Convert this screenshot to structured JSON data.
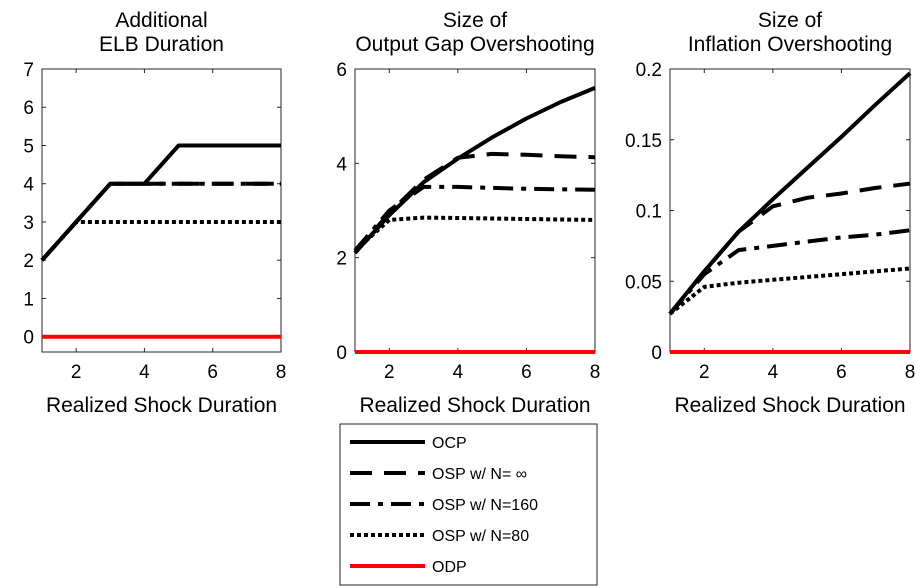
{
  "chart_data": [
    {
      "type": "line",
      "title": [
        "Additional",
        "ELB Duration"
      ],
      "xlabel": "Realized Shock Duration",
      "ylabel": "",
      "xlim": [
        1,
        8
      ],
      "ylim": [
        -0.4,
        7
      ],
      "xticks": [
        2,
        4,
        6,
        8
      ],
      "yticks": [
        0,
        1,
        2,
        3,
        4,
        5,
        6,
        7
      ],
      "x": [
        1,
        2,
        3,
        4,
        5,
        6,
        7,
        8
      ],
      "series": [
        {
          "name": "OCP",
          "style": "solid",
          "color": "#000000",
          "values": [
            2,
            3,
            4,
            4,
            5,
            5,
            5,
            5
          ]
        },
        {
          "name": "OSP w/ N= ∞",
          "style": "dashed",
          "color": "#000000",
          "values": [
            2,
            3,
            4,
            4,
            4,
            4,
            4,
            4
          ]
        },
        {
          "name": "OSP w/ N=160",
          "style": "dashdot",
          "color": "#000000",
          "values": [
            2,
            3,
            4,
            4,
            4,
            4,
            4,
            4
          ]
        },
        {
          "name": "OSP w/ N=80",
          "style": "dotted",
          "color": "#000000",
          "values": [
            2,
            3,
            3,
            3,
            3,
            3,
            3,
            3
          ]
        },
        {
          "name": "ODP",
          "style": "solid",
          "color": "#ff0000",
          "values": [
            0,
            0,
            0,
            0,
            0,
            0,
            0,
            0
          ]
        }
      ]
    },
    {
      "type": "line",
      "title": [
        "Size of",
        "Output Gap Overshooting"
      ],
      "xlabel": "Realized Shock Duration",
      "ylabel": "",
      "xlim": [
        1,
        8
      ],
      "ylim": [
        0,
        6
      ],
      "xticks": [
        2,
        4,
        6,
        8
      ],
      "yticks": [
        0,
        2,
        4,
        6
      ],
      "x": [
        1,
        2,
        3,
        4,
        5,
        6,
        7,
        8
      ],
      "series": [
        {
          "name": "OCP",
          "style": "solid",
          "color": "#000000",
          "values": [
            2.1,
            2.9,
            3.6,
            4.1,
            4.55,
            4.95,
            5.3,
            5.6
          ]
        },
        {
          "name": "OSP w/ N= ∞",
          "style": "dashed",
          "color": "#000000",
          "values": [
            2.1,
            2.95,
            3.65,
            4.12,
            4.2,
            4.18,
            4.15,
            4.13
          ]
        },
        {
          "name": "OSP w/ N=160",
          "style": "dashdot",
          "color": "#000000",
          "values": [
            2.15,
            3.0,
            3.5,
            3.5,
            3.48,
            3.46,
            3.45,
            3.44
          ]
        },
        {
          "name": "OSP w/ N=80",
          "style": "dotted",
          "color": "#000000",
          "values": [
            2.15,
            2.8,
            2.85,
            2.84,
            2.83,
            2.82,
            2.81,
            2.8
          ]
        },
        {
          "name": "ODP",
          "style": "solid",
          "color": "#ff0000",
          "values": [
            0,
            0,
            0,
            0,
            0,
            0,
            0,
            0
          ]
        }
      ]
    },
    {
      "type": "line",
      "title": [
        "Size of",
        "Inflation Overshooting"
      ],
      "xlabel": "Realized Shock Duration",
      "ylabel": "",
      "xlim": [
        1,
        8
      ],
      "ylim": [
        0,
        0.2
      ],
      "xticks": [
        2,
        4,
        6,
        8
      ],
      "yticks": [
        0,
        0.05,
        0.1,
        0.15,
        0.2
      ],
      "ytick_labels": [
        "0",
        "0.05",
        "0.1",
        "0.15",
        "0.2"
      ],
      "x": [
        1,
        2,
        3,
        4,
        5,
        6,
        7,
        8
      ],
      "series": [
        {
          "name": "OCP",
          "style": "solid",
          "color": "#000000",
          "values": [
            0.027,
            0.057,
            0.085,
            0.108,
            0.13,
            0.152,
            0.175,
            0.197
          ]
        },
        {
          "name": "OSP w/ N= ∞",
          "style": "dashed",
          "color": "#000000",
          "values": [
            0.027,
            0.057,
            0.085,
            0.103,
            0.109,
            0.112,
            0.116,
            0.119
          ]
        },
        {
          "name": "OSP w/ N=160",
          "style": "dashdot",
          "color": "#000000",
          "values": [
            0.027,
            0.055,
            0.072,
            0.075,
            0.078,
            0.081,
            0.083,
            0.086
          ]
        },
        {
          "name": "OSP w/ N=80",
          "style": "dotted",
          "color": "#000000",
          "values": [
            0.027,
            0.046,
            0.049,
            0.051,
            0.053,
            0.055,
            0.057,
            0.059
          ]
        },
        {
          "name": "ODP",
          "style": "solid",
          "color": "#ff0000",
          "values": [
            0,
            0,
            0,
            0,
            0,
            0,
            0,
            0
          ]
        }
      ]
    }
  ],
  "legend": {
    "placement": "bottom-center",
    "entries": [
      {
        "label": "OCP",
        "style": "solid",
        "color": "#000000"
      },
      {
        "label": "OSP w/ N= ∞",
        "style": "dashed",
        "color": "#000000"
      },
      {
        "label": "OSP w/ N=160",
        "style": "dashdot",
        "color": "#000000"
      },
      {
        "label": "OSP w/ N=80",
        "style": "dotted",
        "color": "#000000"
      },
      {
        "label": "ODP",
        "style": "solid",
        "color": "#ff0000"
      }
    ]
  }
}
